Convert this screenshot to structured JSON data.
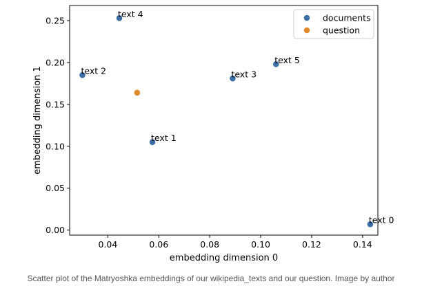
{
  "chart_data": {
    "type": "scatter",
    "xlabel": "embedding dimension 0",
    "ylabel": "embedding dimension 1",
    "xlim": [
      0.025,
      0.146
    ],
    "ylim": [
      -0.006,
      0.268
    ],
    "xticks": [
      "0.04",
      "0.06",
      "0.08",
      "0.10",
      "0.12",
      "0.14"
    ],
    "xtick_values": [
      0.04,
      0.06,
      0.08,
      0.1,
      0.12,
      0.14
    ],
    "yticks": [
      "0.00",
      "0.05",
      "0.10",
      "0.15",
      "0.20",
      "0.25"
    ],
    "ytick_values": [
      0.0,
      0.05,
      0.1,
      0.15,
      0.2,
      0.25
    ],
    "grid": false,
    "legend_position": "top-right",
    "series": [
      {
        "name": "documents",
        "color": "#3a6ea5",
        "points": [
          {
            "x": 0.143,
            "y": 0.007,
            "label": "text 0"
          },
          {
            "x": 0.0575,
            "y": 0.105,
            "label": "text 1"
          },
          {
            "x": 0.03,
            "y": 0.185,
            "label": "text 2"
          },
          {
            "x": 0.089,
            "y": 0.181,
            "label": "text 3"
          },
          {
            "x": 0.0445,
            "y": 0.253,
            "label": "text 4"
          },
          {
            "x": 0.106,
            "y": 0.198,
            "label": "text 5"
          }
        ]
      },
      {
        "name": "question",
        "color": "#e08a2c",
        "points": [
          {
            "x": 0.0515,
            "y": 0.164
          }
        ]
      }
    ]
  },
  "caption": "Scatter plot of the Matryoshka embeddings of our wikipedia_texts and our question. Image by author"
}
